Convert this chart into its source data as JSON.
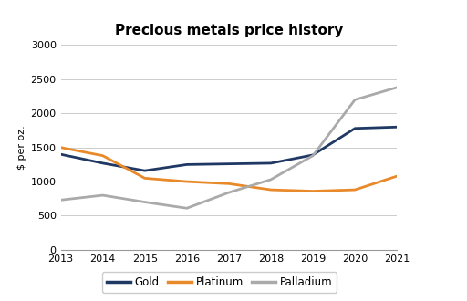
{
  "title": "Precious metals price history",
  "ylabel": "$ per oz.",
  "years": [
    2013,
    2014,
    2015,
    2016,
    2017,
    2018,
    2019,
    2020,
    2021
  ],
  "gold": [
    1400,
    1270,
    1160,
    1250,
    1260,
    1270,
    1390,
    1780,
    1800
  ],
  "platinum": [
    1500,
    1380,
    1050,
    1000,
    970,
    880,
    860,
    880,
    1080
  ],
  "palladium": [
    730,
    800,
    700,
    610,
    840,
    1030,
    1380,
    2200,
    2380
  ],
  "gold_color": "#1f3864",
  "platinum_color": "#e8892a",
  "palladium_color": "#aaaaaa",
  "ylim": [
    0,
    3000
  ],
  "yticks": [
    0,
    500,
    1000,
    1500,
    2000,
    2500,
    3000
  ],
  "background_color": "#ffffff",
  "linewidth": 2.0,
  "title_fontsize": 11,
  "axis_fontsize": 8,
  "legend_fontsize": 8.5
}
